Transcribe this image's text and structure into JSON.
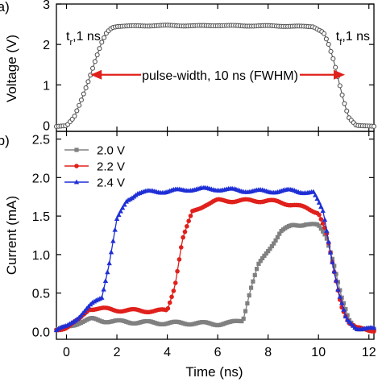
{
  "chart_data": [
    {
      "type": "line",
      "panel_label": "(a)",
      "ylabel": "Voltage (V)",
      "xlim": [
        -0.4,
        12.2
      ],
      "ylim": [
        -0.15,
        3.0
      ],
      "yticks": [
        0,
        1,
        2,
        3
      ],
      "grid": false,
      "annotations": {
        "rise": "tᵣ,1 ns",
        "rise_main": "t",
        "rise_sub": "r",
        "rise_rest": ",1 ns",
        "fall_main": "t",
        "fall_sub": "f",
        "fall_rest": ",1 ns",
        "pulse": "pulse-width, 10 ns (FWHM)"
      },
      "colors": {
        "series": "#555555",
        "arrow": "#e0201b"
      },
      "series": [
        {
          "x": [
            -0.4,
            0.0,
            0.3,
            0.6,
            0.9,
            1.2,
            1.4,
            1.6,
            1.8,
            2.0,
            3,
            4,
            5,
            6,
            7,
            8,
            9,
            9.8,
            10.2,
            10.4,
            10.6,
            10.8,
            11.0,
            11.2,
            11.5,
            11.8,
            12.2
          ],
          "y": [
            -0.03,
            -0.02,
            0.2,
            0.65,
            1.15,
            1.7,
            2.05,
            2.3,
            2.42,
            2.45,
            2.46,
            2.47,
            2.46,
            2.47,
            2.46,
            2.46,
            2.45,
            2.44,
            2.3,
            2.0,
            1.6,
            1.1,
            0.6,
            0.2,
            0.0,
            -0.02,
            -0.03
          ]
        }
      ]
    },
    {
      "type": "line",
      "panel_label": "(b)",
      "xlabel": "Time (ns)",
      "ylabel": "Current (mA)",
      "xlim": [
        -0.4,
        12.2
      ],
      "ylim": [
        -0.1,
        2.6
      ],
      "xticks": [
        0,
        2,
        4,
        6,
        8,
        10,
        12
      ],
      "yticks": [
        0.0,
        0.5,
        1.0,
        1.5,
        2.0,
        2.5
      ],
      "ytick_labels": [
        "0.0",
        "0.5",
        "1.0",
        "1.5",
        "2.0",
        "2.5"
      ],
      "legend_position": "top-left",
      "grid": false,
      "series": [
        {
          "name": "2.0 V",
          "color": "#808080",
          "marker": "square",
          "x": [
            -0.4,
            0.0,
            0.5,
            1.0,
            1.5,
            2,
            3,
            4,
            5,
            6,
            6.5,
            7.0,
            7.3,
            7.6,
            8.0,
            8.5,
            9.0,
            9.5,
            10.0,
            10.3,
            10.6,
            10.9,
            11.2,
            11.5,
            12.2
          ],
          "y": [
            0.02,
            0.05,
            0.12,
            0.16,
            0.14,
            0.13,
            0.12,
            0.11,
            0.11,
            0.1,
            0.11,
            0.15,
            0.55,
            0.85,
            1.05,
            1.3,
            1.38,
            1.4,
            1.37,
            1.25,
            0.9,
            0.45,
            0.15,
            0.05,
            0.02
          ]
        },
        {
          "name": "2.2 V",
          "color": "#e0201b",
          "marker": "circle",
          "x": [
            -0.4,
            0.0,
            0.5,
            0.9,
            1.2,
            2,
            3,
            4,
            4.3,
            4.6,
            5.0,
            5.5,
            6,
            7,
            8,
            9,
            10.0,
            10.3,
            10.6,
            10.9,
            11.2,
            11.5,
            12.2
          ],
          "y": [
            0.02,
            0.06,
            0.15,
            0.3,
            0.3,
            0.28,
            0.27,
            0.27,
            0.6,
            1.2,
            1.55,
            1.65,
            1.7,
            1.7,
            1.7,
            1.65,
            1.55,
            1.3,
            0.8,
            0.35,
            0.12,
            0.04,
            0.02
          ]
        },
        {
          "name": "2.4 V",
          "color": "#1f2fd6",
          "marker": "triangle",
          "x": [
            -0.4,
            0.0,
            0.5,
            1.0,
            1.4,
            1.7,
            2.0,
            2.4,
            2.8,
            3.5,
            4,
            5,
            6,
            7,
            8,
            9,
            9.8,
            10.2,
            10.5,
            10.8,
            11.1,
            11.5,
            12.2
          ],
          "y": [
            0.02,
            0.06,
            0.2,
            0.35,
            0.45,
            0.9,
            1.45,
            1.7,
            1.8,
            1.82,
            1.82,
            1.85,
            1.85,
            1.83,
            1.82,
            1.83,
            1.8,
            1.55,
            1.0,
            0.5,
            0.15,
            0.05,
            0.03
          ]
        }
      ]
    }
  ]
}
